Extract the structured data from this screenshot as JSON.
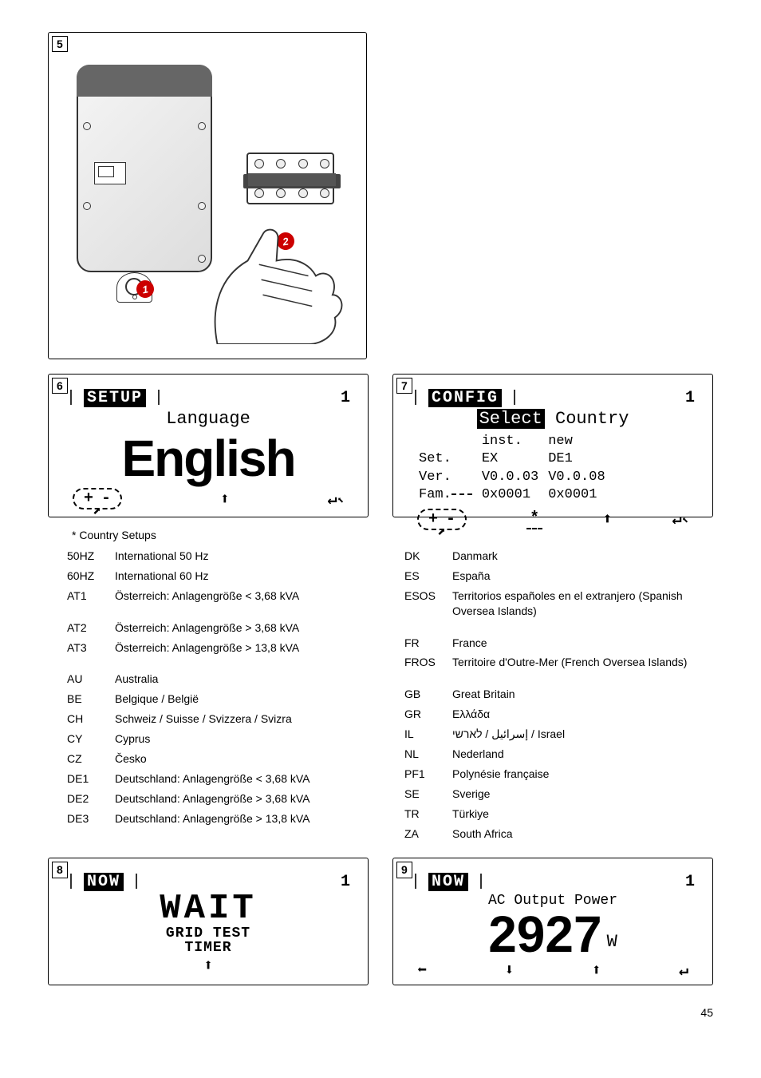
{
  "page_number": 45,
  "panels": {
    "p5": {
      "num": "5",
      "marker1": "1",
      "marker2": "2"
    },
    "p6": {
      "num": "6",
      "title": "SETUP",
      "title_page": "1",
      "subtitle": "Language",
      "main": "English",
      "btn_plus": "+",
      "btn_minus": "-",
      "btn_up": "⬆",
      "btn_enter": "↵"
    },
    "p7": {
      "num": "7",
      "title": "CONFIG",
      "title_page": "1",
      "subtitle_select": "Select",
      "subtitle_country": "Country",
      "row_inst": "inst.",
      "row_new": "new",
      "set_lbl": "Set.",
      "set_inst": "EX",
      "set_new": "DE1",
      "ver_lbl": "Ver.",
      "ver_inst": "V0.0.03",
      "ver_new": "V0.0.08",
      "fam_lbl": "Fam.",
      "fam_inst": "0x0001",
      "fam_new": "0x0001",
      "footnote_mark": "*",
      "btn_plus": "+",
      "btn_minus": "-",
      "btn_up": "⬆",
      "btn_enter": "↵"
    },
    "p8": {
      "num": "8",
      "title": "NOW",
      "title_page": "1",
      "main1": "WAIT",
      "main2": "GRID TEST",
      "main3": "TIMER",
      "btn_up": "⬆"
    },
    "p9": {
      "num": "9",
      "title": "NOW",
      "title_page": "1",
      "subtitle": "AC Output Power",
      "value": "2927",
      "unit": "W",
      "btn_left": "⬅",
      "btn_down": "⬇",
      "btn_up": "⬆",
      "btn_enter": "↵"
    }
  },
  "country_setups_heading": "* Country Setups",
  "countries_left": [
    {
      "code": "50HZ",
      "desc": "International 50 Hz"
    },
    {
      "code": "60HZ",
      "desc": "International 60 Hz"
    },
    {
      "code": "AT1",
      "desc": "Österreich: Anlagengröße < 3,68 kVA"
    },
    {
      "code": "AT2",
      "desc": "Österreich: Anlagengröße > 3,68 kVA"
    },
    {
      "code": "AT3",
      "desc": "Österreich: Anlagengröße > 13,8 kVA"
    },
    {
      "code": "AU",
      "desc": "Australia"
    },
    {
      "code": "BE",
      "desc": "Belgique / België"
    },
    {
      "code": "CH",
      "desc": "Schweiz / Suisse / Svizzera / Svizra"
    },
    {
      "code": "CY",
      "desc": "Cyprus"
    },
    {
      "code": "CZ",
      "desc": "Česko"
    },
    {
      "code": "DE1",
      "desc": "Deutschland: Anlagengröße < 3,68 kVA"
    },
    {
      "code": "DE2",
      "desc": "Deutschland: Anlagengröße > 3,68 kVA"
    },
    {
      "code": "DE3",
      "desc": "Deutschland: Anlagengröße > 13,8 kVA"
    }
  ],
  "countries_right": [
    {
      "code": "DK",
      "desc": "Danmark"
    },
    {
      "code": "ES",
      "desc": "España"
    },
    {
      "code": "ESOS",
      "desc": "Territorios españoles en el extranjero (Spanish Oversea Islands)"
    },
    {
      "code": "FR",
      "desc": "France"
    },
    {
      "code": "FROS",
      "desc": "Territoire d'Outre-Mer (French Oversea Islands)"
    },
    {
      "code": "GB",
      "desc": "Great Britain"
    },
    {
      "code": "GR",
      "desc": "Ελλάδα"
    },
    {
      "code": "IL",
      "desc": "إسرائيل / לארשי / Israel"
    },
    {
      "code": "NL",
      "desc": "Nederland"
    },
    {
      "code": "PF1",
      "desc": "Polynésie française"
    },
    {
      "code": "SE",
      "desc": "Sverige"
    },
    {
      "code": "TR",
      "desc": "Türkiye"
    },
    {
      "code": "ZA",
      "desc": "South Africa"
    }
  ],
  "colors": {
    "marker_bg": "#c00000",
    "text": "#000000",
    "page_bg": "#ffffff"
  },
  "typography": {
    "body_fontsize_pt": 10,
    "lcd_font": "Courier New",
    "lcd_main_fontsize_pt": 36
  }
}
